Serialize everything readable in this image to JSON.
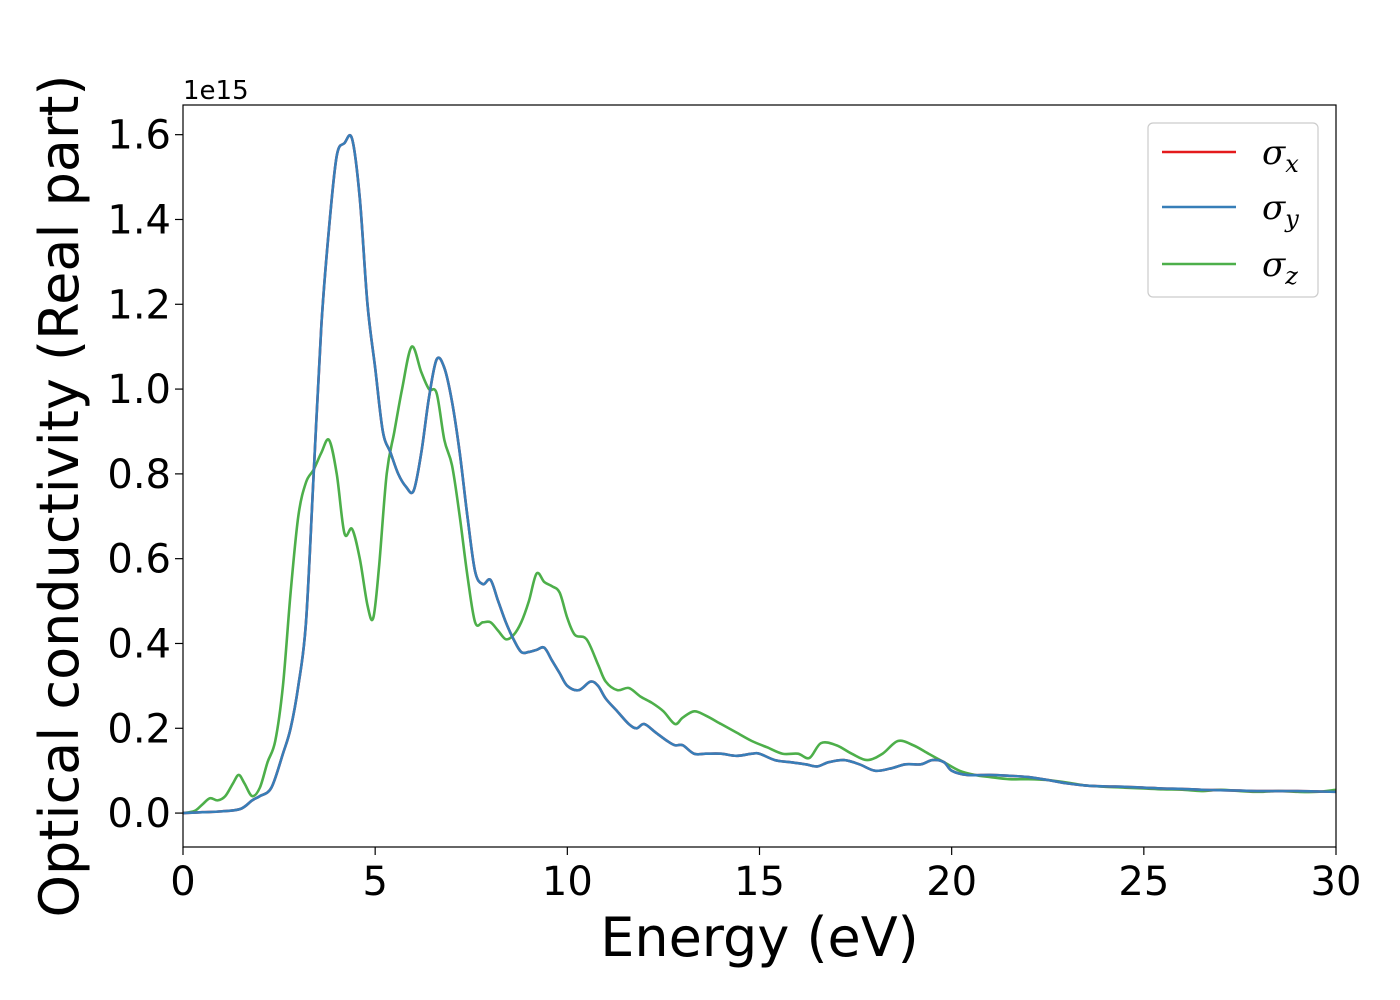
{
  "chart_data": {
    "type": "line",
    "xlabel": "Energy (eV)",
    "ylabel": "Optical conductivity (Real part)",
    "y_offset_label": "1e15",
    "xlim": [
      0,
      30
    ],
    "ylim": [
      -0.08,
      1.67
    ],
    "x_ticks": [
      0,
      5,
      10,
      15,
      20,
      25,
      30
    ],
    "x_tick_labels": [
      "0",
      "5",
      "10",
      "15",
      "20",
      "25",
      "30"
    ],
    "y_ticks": [
      0.0,
      0.2,
      0.4,
      0.6,
      0.8,
      1.0,
      1.2,
      1.4,
      1.6
    ],
    "y_tick_labels": [
      "0.0",
      "0.2",
      "0.4",
      "0.6",
      "0.8",
      "1.0",
      "1.2",
      "1.4",
      "1.6"
    ],
    "grid": false,
    "legend_position": "top-right",
    "series": [
      {
        "name": "σx",
        "symbol": "σ",
        "subscript": "x",
        "color": "#e41a1c",
        "x": [
          0,
          0.5,
          1.0,
          1.5,
          1.8,
          2.0,
          2.3,
          2.6,
          2.8,
          3.0,
          3.2,
          3.4,
          3.6,
          3.8,
          4.0,
          4.2,
          4.4,
          4.6,
          4.8,
          5.0,
          5.2,
          5.4,
          5.6,
          5.8,
          6.0,
          6.2,
          6.4,
          6.6,
          6.8,
          7.0,
          7.2,
          7.4,
          7.6,
          7.8,
          8.0,
          8.2,
          8.4,
          8.6,
          8.8,
          9.0,
          9.2,
          9.4,
          9.6,
          9.8,
          10.0,
          10.3,
          10.6,
          10.8,
          11.0,
          11.3,
          11.6,
          11.8,
          12.0,
          12.3,
          12.6,
          12.8,
          13.0,
          13.3,
          13.6,
          14.0,
          14.4,
          14.8,
          15.0,
          15.4,
          15.8,
          16.2,
          16.5,
          16.8,
          17.2,
          17.6,
          18.0,
          18.4,
          18.8,
          19.2,
          19.5,
          19.8,
          20.0,
          20.4,
          21.0,
          21.5,
          22.0,
          22.5,
          23.0,
          23.5,
          24.0,
          24.5,
          25.0,
          25.5,
          26.0,
          26.5,
          27.0,
          27.5,
          28.0,
          28.5,
          29.0,
          29.5,
          30.0
        ],
        "y": [
          0,
          0.002,
          0.004,
          0.01,
          0.03,
          0.04,
          0.06,
          0.14,
          0.2,
          0.3,
          0.45,
          0.8,
          1.15,
          1.38,
          1.55,
          1.58,
          1.59,
          1.45,
          1.2,
          1.05,
          0.9,
          0.85,
          0.8,
          0.77,
          0.76,
          0.85,
          0.98,
          1.07,
          1.05,
          0.97,
          0.85,
          0.7,
          0.57,
          0.54,
          0.55,
          0.5,
          0.45,
          0.41,
          0.38,
          0.38,
          0.385,
          0.39,
          0.36,
          0.33,
          0.3,
          0.29,
          0.31,
          0.3,
          0.27,
          0.24,
          0.21,
          0.2,
          0.21,
          0.19,
          0.17,
          0.16,
          0.16,
          0.14,
          0.14,
          0.14,
          0.135,
          0.14,
          0.14,
          0.125,
          0.12,
          0.115,
          0.11,
          0.12,
          0.125,
          0.115,
          0.1,
          0.105,
          0.115,
          0.115,
          0.125,
          0.12,
          0.1,
          0.09,
          0.09,
          0.088,
          0.085,
          0.078,
          0.07,
          0.065,
          0.063,
          0.062,
          0.06,
          0.058,
          0.057,
          0.055,
          0.054,
          0.053,
          0.052,
          0.052,
          0.052,
          0.051,
          0.05
        ]
      },
      {
        "name": "σy",
        "symbol": "σ",
        "subscript": "y",
        "color": "#377eb8",
        "x": [
          0,
          0.5,
          1.0,
          1.5,
          1.8,
          2.0,
          2.3,
          2.6,
          2.8,
          3.0,
          3.2,
          3.4,
          3.6,
          3.8,
          4.0,
          4.2,
          4.4,
          4.6,
          4.8,
          5.0,
          5.2,
          5.4,
          5.6,
          5.8,
          6.0,
          6.2,
          6.4,
          6.6,
          6.8,
          7.0,
          7.2,
          7.4,
          7.6,
          7.8,
          8.0,
          8.2,
          8.4,
          8.6,
          8.8,
          9.0,
          9.2,
          9.4,
          9.6,
          9.8,
          10.0,
          10.3,
          10.6,
          10.8,
          11.0,
          11.3,
          11.6,
          11.8,
          12.0,
          12.3,
          12.6,
          12.8,
          13.0,
          13.3,
          13.6,
          14.0,
          14.4,
          14.8,
          15.0,
          15.4,
          15.8,
          16.2,
          16.5,
          16.8,
          17.2,
          17.6,
          18.0,
          18.4,
          18.8,
          19.2,
          19.5,
          19.8,
          20.0,
          20.4,
          21.0,
          21.5,
          22.0,
          22.5,
          23.0,
          23.5,
          24.0,
          24.5,
          25.0,
          25.5,
          26.0,
          26.5,
          27.0,
          27.5,
          28.0,
          28.5,
          29.0,
          29.5,
          30.0
        ],
        "y": [
          0,
          0.002,
          0.004,
          0.01,
          0.03,
          0.04,
          0.06,
          0.14,
          0.2,
          0.3,
          0.45,
          0.8,
          1.15,
          1.38,
          1.55,
          1.58,
          1.59,
          1.45,
          1.2,
          1.05,
          0.9,
          0.85,
          0.8,
          0.77,
          0.76,
          0.85,
          0.98,
          1.07,
          1.05,
          0.97,
          0.85,
          0.7,
          0.57,
          0.54,
          0.55,
          0.5,
          0.45,
          0.41,
          0.38,
          0.38,
          0.385,
          0.39,
          0.36,
          0.33,
          0.3,
          0.29,
          0.31,
          0.3,
          0.27,
          0.24,
          0.21,
          0.2,
          0.21,
          0.19,
          0.17,
          0.16,
          0.16,
          0.14,
          0.14,
          0.14,
          0.135,
          0.14,
          0.14,
          0.125,
          0.12,
          0.115,
          0.11,
          0.12,
          0.125,
          0.115,
          0.1,
          0.105,
          0.115,
          0.115,
          0.125,
          0.12,
          0.1,
          0.09,
          0.09,
          0.088,
          0.085,
          0.078,
          0.07,
          0.065,
          0.063,
          0.062,
          0.06,
          0.058,
          0.057,
          0.055,
          0.054,
          0.053,
          0.052,
          0.052,
          0.052,
          0.051,
          0.05
        ]
      },
      {
        "name": "σz",
        "symbol": "σ",
        "subscript": "z",
        "color": "#4daf4a",
        "x": [
          0,
          0.3,
          0.5,
          0.7,
          0.9,
          1.1,
          1.3,
          1.45,
          1.6,
          1.8,
          2.0,
          2.2,
          2.4,
          2.6,
          2.8,
          3.0,
          3.2,
          3.4,
          3.6,
          3.8,
          4.0,
          4.2,
          4.4,
          4.6,
          4.8,
          4.95,
          5.1,
          5.3,
          5.5,
          5.7,
          5.95,
          6.2,
          6.4,
          6.6,
          6.8,
          7.0,
          7.2,
          7.4,
          7.6,
          7.8,
          8.0,
          8.2,
          8.4,
          8.6,
          8.8,
          9.0,
          9.2,
          9.4,
          9.6,
          9.8,
          10.0,
          10.2,
          10.5,
          10.8,
          11.0,
          11.3,
          11.6,
          11.9,
          12.2,
          12.5,
          12.8,
          13.0,
          13.3,
          13.6,
          14.0,
          14.4,
          14.8,
          15.2,
          15.6,
          16.0,
          16.3,
          16.6,
          17.0,
          17.4,
          17.8,
          18.2,
          18.6,
          19.0,
          19.4,
          19.8,
          20.2,
          20.6,
          21.0,
          21.5,
          22.0,
          22.5,
          23.0,
          23.5,
          24.0,
          24.5,
          25.0,
          25.5,
          26.0,
          26.5,
          27.0,
          27.5,
          28.0,
          28.5,
          29.0,
          29.5,
          30.0
        ],
        "y": [
          0,
          0.005,
          0.02,
          0.035,
          0.03,
          0.04,
          0.07,
          0.09,
          0.07,
          0.04,
          0.06,
          0.12,
          0.17,
          0.3,
          0.52,
          0.7,
          0.78,
          0.81,
          0.85,
          0.88,
          0.8,
          0.66,
          0.67,
          0.6,
          0.49,
          0.46,
          0.58,
          0.8,
          0.9,
          1.0,
          1.1,
          1.04,
          1.0,
          0.99,
          0.88,
          0.82,
          0.7,
          0.56,
          0.45,
          0.45,
          0.45,
          0.43,
          0.41,
          0.42,
          0.45,
          0.5,
          0.565,
          0.545,
          0.535,
          0.52,
          0.46,
          0.42,
          0.41,
          0.35,
          0.31,
          0.29,
          0.295,
          0.275,
          0.26,
          0.24,
          0.21,
          0.225,
          0.24,
          0.23,
          0.21,
          0.19,
          0.17,
          0.155,
          0.14,
          0.14,
          0.13,
          0.165,
          0.16,
          0.14,
          0.125,
          0.14,
          0.17,
          0.16,
          0.14,
          0.12,
          0.1,
          0.09,
          0.085,
          0.08,
          0.08,
          0.078,
          0.072,
          0.065,
          0.062,
          0.06,
          0.058,
          0.056,
          0.055,
          0.052,
          0.055,
          0.052,
          0.05,
          0.052,
          0.05,
          0.05,
          0.055
        ]
      }
    ]
  }
}
